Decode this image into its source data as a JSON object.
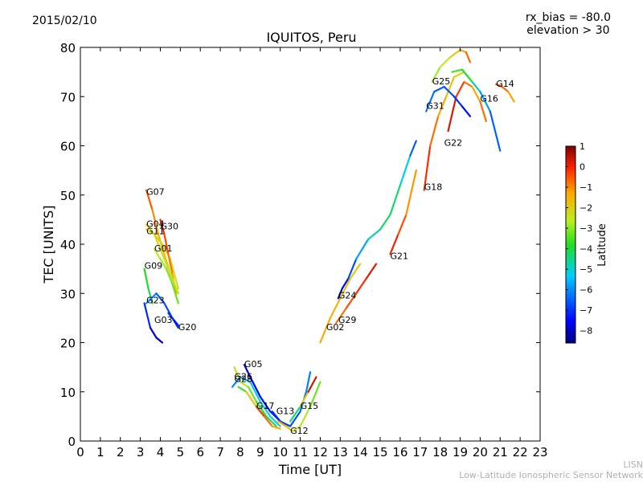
{
  "header": {
    "date": "2015/02/10",
    "rx_bias": "rx_bias = -80.0",
    "elevation": "elevation > 30"
  },
  "footer": {
    "line1": "LISN",
    "line2": "Low-Latitude Ionospheric Sensor Network"
  },
  "chart_data": {
    "type": "scatter",
    "title": "IQUITOS, Peru",
    "xlabel": "Time [UT]",
    "ylabel": "TEC [UNITS]",
    "xlim": [
      0,
      23
    ],
    "ylim": [
      0,
      80
    ],
    "xticks": [
      "0",
      "1",
      "2",
      "3",
      "4",
      "5",
      "6",
      "7",
      "8",
      "9",
      "10",
      "11",
      "12",
      "13",
      "14",
      "15",
      "16",
      "17",
      "18",
      "19",
      "20",
      "21",
      "22",
      "23"
    ],
    "yticks": [
      "0",
      "10",
      "20",
      "30",
      "40",
      "50",
      "60",
      "70",
      "80"
    ],
    "grid": false,
    "colorbar": {
      "label": "Latitude",
      "min": -8.6,
      "max": 1.0,
      "ticks": [
        "1",
        "0",
        "−1",
        "−2",
        "−3",
        "−4",
        "−5",
        "−6",
        "−7",
        "−8"
      ],
      "tick_values": [
        1,
        0,
        -1,
        -2,
        -3,
        -4,
        -5,
        -6,
        -7,
        -8
      ]
    },
    "satellites": [
      {
        "label": "G07",
        "label_at": [
          3.3,
          50.5
        ],
        "points": [
          [
            3.3,
            51
          ],
          [
            3.6,
            47
          ],
          [
            3.9,
            42
          ],
          [
            4.2,
            38
          ],
          [
            4.5,
            34
          ],
          [
            4.9,
            30
          ]
        ],
        "lat": [
          -0.3,
          -0.8,
          -1.2,
          -1.6,
          -2.0,
          -2.3
        ]
      },
      {
        "label": "G04",
        "label_at": [
          3.3,
          44
        ],
        "points": [
          [
            3.3,
            44
          ],
          [
            3.7,
            42
          ],
          [
            4.1,
            40
          ],
          [
            4.5,
            37
          ],
          [
            4.9,
            31
          ]
        ],
        "lat": [
          -1.8,
          -2.0,
          -2.1,
          -2.3,
          -2.5
        ]
      },
      {
        "label": "G30",
        "label_at": [
          4.0,
          43.5
        ],
        "points": [
          [
            4.0,
            45
          ],
          [
            4.2,
            42
          ],
          [
            4.4,
            38
          ],
          [
            4.6,
            34
          ],
          [
            4.8,
            30
          ]
        ],
        "lat": [
          0.2,
          -0.2,
          -0.6,
          -1.0,
          -1.5
        ]
      },
      {
        "label": "G11",
        "label_at": [
          3.3,
          42.5
        ],
        "points": [
          [
            3.3,
            43
          ],
          [
            3.7,
            42
          ],
          [
            4.0,
            39
          ],
          [
            4.4,
            35
          ],
          [
            4.9,
            30
          ]
        ],
        "lat": [
          -2.4,
          -2.3,
          -2.2,
          -2.4,
          -2.5
        ]
      },
      {
        "label": "G01",
        "label_at": [
          3.7,
          39
        ],
        "points": [
          [
            3.7,
            39
          ],
          [
            4.0,
            37
          ],
          [
            4.3,
            35
          ],
          [
            4.6,
            32
          ],
          [
            4.9,
            28
          ]
        ],
        "lat": [
          -2.5,
          -2.8,
          -3.0,
          -3.2,
          -3.4
        ]
      },
      {
        "label": "G09",
        "label_at": [
          3.2,
          35.5
        ],
        "points": [
          [
            3.2,
            35
          ],
          [
            3.4,
            31
          ],
          [
            3.6,
            28
          ]
        ],
        "lat": [
          -3.6,
          -4.0,
          -4.3
        ]
      },
      {
        "label": "G23",
        "label_at": [
          3.3,
          28.5
        ],
        "points": [
          [
            3.3,
            28
          ],
          [
            3.8,
            30
          ],
          [
            4.2,
            28
          ],
          [
            4.6,
            25
          ],
          [
            4.9,
            23
          ]
        ],
        "lat": [
          -6.0,
          -6.3,
          -6.6,
          -6.9,
          -7.2
        ]
      },
      {
        "label": "G03",
        "label_at": [
          3.7,
          24.5
        ],
        "points": [
          [
            3.2,
            28
          ],
          [
            3.5,
            23
          ],
          [
            3.8,
            21
          ],
          [
            4.1,
            20
          ]
        ],
        "lat": [
          -6.8,
          -7.4,
          -7.9,
          -8.4
        ]
      },
      {
        "label": "G20",
        "label_at": [
          4.9,
          23
        ],
        "points": [
          [
            4.4,
            26
          ],
          [
            4.7,
            24.5
          ],
          [
            4.9,
            23.5
          ]
        ],
        "lat": [
          -7.0,
          -7.2,
          -7.4
        ]
      },
      {
        "label": "G05",
        "label_at": [
          8.2,
          15.5
        ],
        "points": [
          [
            8.2,
            15.5
          ],
          [
            8.5,
            13
          ],
          [
            9.0,
            9
          ],
          [
            9.5,
            6
          ],
          [
            10.0,
            4
          ]
        ],
        "lat": [
          -7.9,
          -7.7,
          -7.5,
          -7.3,
          -7.2
        ]
      },
      {
        "label": "G26",
        "label_at": [
          7.7,
          13
        ],
        "points": [
          [
            7.7,
            15
          ],
          [
            8.0,
            12
          ],
          [
            8.4,
            11
          ],
          [
            8.8,
            8
          ],
          [
            9.3,
            5
          ],
          [
            9.8,
            3
          ]
        ],
        "lat": [
          -2.2,
          -2.5,
          -3.0,
          -3.5,
          -4.0,
          -4.5
        ]
      },
      {
        "label": "G28",
        "label_at": [
          7.7,
          12.5
        ],
        "points": [
          [
            7.6,
            11
          ],
          [
            8.0,
            13
          ],
          [
            8.5,
            12
          ],
          [
            9.0,
            8
          ],
          [
            9.5,
            5
          ],
          [
            10.0,
            3
          ]
        ],
        "lat": [
          -6.2,
          -5.8,
          -5.5,
          -5.2,
          -5.0,
          -4.8
        ]
      },
      {
        "label": "G17",
        "label_at": [
          8.8,
          7
        ],
        "points": [
          [
            7.9,
            11
          ],
          [
            8.3,
            10
          ],
          [
            8.8,
            7
          ],
          [
            9.2,
            5
          ],
          [
            9.6,
            3
          ],
          [
            10.0,
            2.5
          ]
        ],
        "lat": [
          -3.5,
          -3.8,
          0.0,
          -0.5,
          -1.0,
          -1.5
        ]
      },
      {
        "label": "G13",
        "label_at": [
          9.8,
          6
        ],
        "points": [
          [
            9.6,
            6
          ],
          [
            10.0,
            4
          ],
          [
            10.5,
            3
          ],
          [
            11.0,
            6
          ],
          [
            11.3,
            10
          ],
          [
            11.5,
            14
          ]
        ],
        "lat": [
          -7.2,
          -7.0,
          -6.8,
          -6.5,
          -6.3,
          -6.0
        ]
      },
      {
        "label": "G12",
        "label_at": [
          10.5,
          2
        ],
        "points": [
          [
            9.9,
            4
          ],
          [
            10.3,
            3
          ],
          [
            10.6,
            2
          ],
          [
            11.0,
            3
          ],
          [
            11.5,
            7
          ],
          [
            12.0,
            12
          ]
        ],
        "lat": [
          -1.0,
          -1.5,
          -2.0,
          -2.5,
          -3.0,
          -3.5
        ]
      },
      {
        "label": "G15",
        "label_at": [
          11.0,
          7
        ],
        "points": [
          [
            10.5,
            4
          ],
          [
            11.0,
            7
          ],
          [
            11.4,
            10
          ],
          [
            11.8,
            13
          ]
        ],
        "lat": [
          -4.5,
          -4.2,
          0.2,
          0.5
        ]
      },
      {
        "label": "G02",
        "label_at": [
          12.3,
          23
        ],
        "points": [
          [
            12.0,
            20
          ],
          [
            12.5,
            25
          ],
          [
            13.0,
            29
          ],
          [
            13.5,
            33
          ],
          [
            14.0,
            36
          ]
        ],
        "lat": [
          -1.2,
          -1.4,
          -1.6,
          -1.8,
          -2.0
        ]
      },
      {
        "label": "G29",
        "label_at": [
          12.9,
          24.5
        ],
        "points": [
          [
            12.8,
            24
          ],
          [
            13.3,
            27
          ],
          [
            13.8,
            30
          ],
          [
            14.3,
            33
          ],
          [
            14.8,
            36
          ]
        ],
        "lat": [
          -1.0,
          -0.6,
          -0.3,
          0.0,
          0.4
        ]
      },
      {
        "label": "G24",
        "label_at": [
          12.9,
          29.5
        ],
        "points": [
          [
            12.9,
            29
          ],
          [
            13.1,
            31
          ],
          [
            13.4,
            33
          ],
          [
            13.8,
            37
          ],
          [
            14.4,
            41
          ],
          [
            15.0,
            43
          ],
          [
            15.5,
            46
          ],
          [
            16.0,
            52
          ],
          [
            16.5,
            58
          ],
          [
            16.8,
            61
          ]
        ],
        "lat": [
          -8.0,
          -7.8,
          -7.0,
          -6.5,
          -5.0,
          -4.5,
          -4.0,
          -4.5,
          -6.0,
          -7.0
        ]
      },
      {
        "label": "G21",
        "label_at": [
          15.5,
          37.5
        ],
        "points": [
          [
            15.5,
            38
          ],
          [
            15.9,
            42
          ],
          [
            16.3,
            46
          ],
          [
            16.8,
            55
          ]
        ],
        "lat": [
          0.3,
          -0.2,
          -0.7,
          -1.5
        ]
      },
      {
        "label": "G18",
        "label_at": [
          17.2,
          51.5
        ],
        "points": [
          [
            17.2,
            51
          ],
          [
            17.5,
            60
          ],
          [
            17.9,
            66
          ],
          [
            18.3,
            70
          ],
          [
            18.7,
            74
          ],
          [
            19.2,
            75
          ]
        ],
        "lat": [
          0.2,
          -0.5,
          -1.0,
          -1.5,
          -2.0,
          -2.5
        ]
      },
      {
        "label": "G22",
        "label_at": [
          18.2,
          60.5
        ],
        "points": [
          [
            18.4,
            63
          ],
          [
            18.8,
            70
          ],
          [
            19.2,
            73
          ],
          [
            19.6,
            72
          ],
          [
            20.0,
            69
          ],
          [
            20.3,
            65
          ]
        ],
        "lat": [
          0.5,
          0.0,
          -0.5,
          -1.0,
          -1.5,
          0.0
        ]
      },
      {
        "label": "G31",
        "label_at": [
          17.3,
          68
        ],
        "points": [
          [
            17.3,
            67
          ],
          [
            17.7,
            71
          ],
          [
            18.2,
            72
          ],
          [
            18.7,
            70
          ],
          [
            19.1,
            68
          ],
          [
            19.5,
            66
          ]
        ],
        "lat": [
          -6.2,
          -6.4,
          -6.6,
          -6.8,
          -7.2,
          -7.5
        ]
      },
      {
        "label": "G25",
        "label_at": [
          17.6,
          73
        ],
        "points": [
          [
            17.6,
            73
          ],
          [
            18.0,
            76
          ],
          [
            18.5,
            78
          ],
          [
            19.0,
            79.5
          ],
          [
            19.3,
            79
          ],
          [
            19.5,
            77
          ]
        ],
        "lat": [
          -3.0,
          -2.7,
          -2.4,
          -1.6,
          -0.9,
          -0.4
        ]
      },
      {
        "label": "G16",
        "label_at": [
          20.0,
          69.5
        ],
        "points": [
          [
            18.6,
            75
          ],
          [
            19.1,
            75.5
          ],
          [
            19.6,
            73
          ],
          [
            20.0,
            71
          ],
          [
            20.5,
            67
          ],
          [
            21.0,
            59
          ]
        ],
        "lat": [
          -3.4,
          -3.5,
          -4.2,
          -5.5,
          -6.2,
          -6.8
        ]
      },
      {
        "label": "G14",
        "label_at": [
          20.8,
          72.5
        ],
        "points": [
          [
            20.8,
            72.5
          ],
          [
            21.1,
            72
          ],
          [
            21.4,
            71
          ],
          [
            21.7,
            69
          ]
        ],
        "lat": [
          0.0,
          -0.5,
          -1.0,
          -1.5
        ]
      }
    ]
  }
}
